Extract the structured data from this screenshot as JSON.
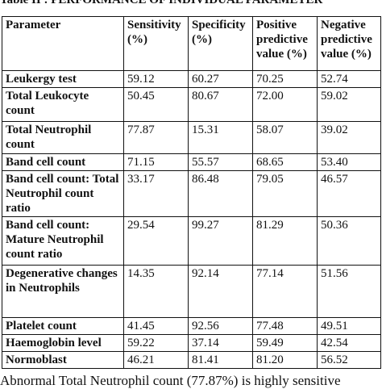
{
  "title": "Table II : PERFORMANCE OF INDIVIDUAL PARAMETER",
  "table": {
    "header": [
      "Parameter",
      "Sensitivity (%)",
      "Specificity (%)",
      "Positive predictive value (%)",
      "Negative predictive value (%)"
    ],
    "rows": [
      [
        "Leukergy test",
        "59.12",
        "60.27",
        "70.25",
        "52.74"
      ],
      [
        "Total Leukocyte count",
        "50.45",
        "80.67",
        "72.00",
        "59.02"
      ],
      [
        "Total Neutrophil count",
        "77.87",
        "15.31",
        "58.07",
        "39.02"
      ],
      [
        "Band cell count",
        "71.15",
        "55.57",
        "68.65",
        "53.40"
      ],
      [
        "Band cell count: Total Neutrophil count ratio",
        "33.17",
        "86.48",
        "79.05",
        "46.57"
      ],
      [
        "Band cell count: Mature Neutrophil count ratio",
        "29.54",
        "99.27",
        "81.29",
        "50.36"
      ],
      [
        "Degenerative changes in Neutrophils",
        "14.35",
        "92.14",
        "77.14",
        "51.56"
      ],
      [
        "Platelet count",
        "41.45",
        "92.56",
        "77.48",
        "49.51"
      ],
      [
        "Haemoglobin level",
        "59.22",
        "37.14",
        "59.49",
        "42.54"
      ],
      [
        "Normoblast",
        "46.21",
        "81.41",
        "81.20",
        "56.52"
      ]
    ]
  },
  "note": "Abnormal Total Neutrophil count (77.87%) is highly sensitive"
}
